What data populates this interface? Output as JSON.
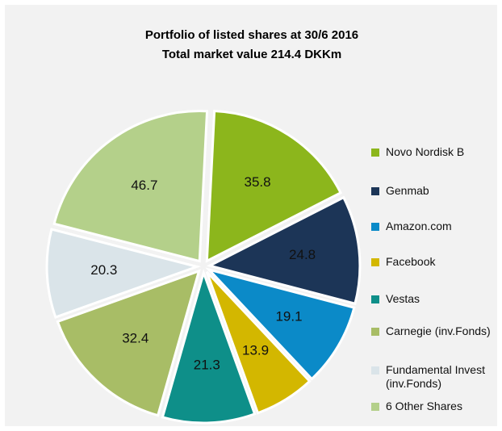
{
  "chart_data": {
    "type": "pie",
    "title": "Portfolio of listed shares at 30/6 2016",
    "subtitle": "Total market value 214.4 DKKm",
    "categories": [
      "Novo Nordisk B",
      "Genmab",
      "Amazon.com",
      "Facebook",
      "Vestas",
      "Carnegie (inv.Fonds)",
      "Fundamental Invest (inv.Fonds)",
      "6 Other Shares"
    ],
    "values": [
      35.8,
      24.8,
      19.1,
      13.9,
      21.3,
      32.4,
      20.3,
      46.7
    ],
    "colors": [
      "#8cb61c",
      "#1c3557",
      "#0b8ac8",
      "#d3b700",
      "#0e8f89",
      "#a8bd66",
      "#dae4e9",
      "#b4d08a"
    ],
    "legend": "right"
  }
}
